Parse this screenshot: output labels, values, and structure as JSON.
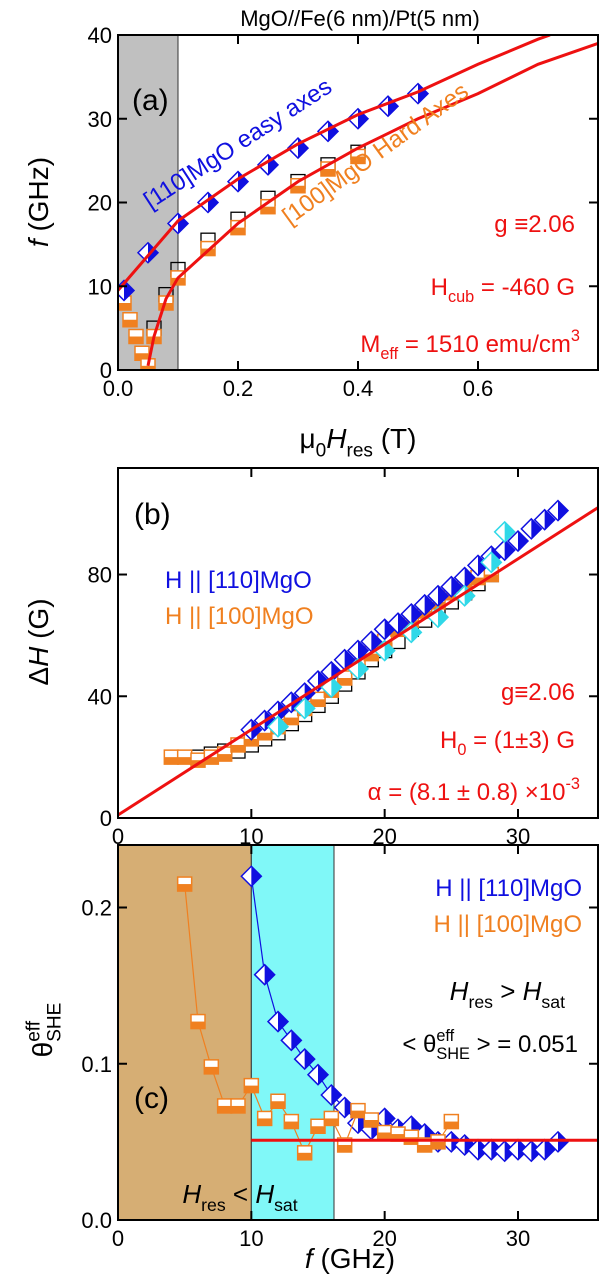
{
  "chart_data": [
    {
      "type": "scatter",
      "title": "MgO//Fe(6 nm)/Pt(5 nm)",
      "x_label": [
        {
          "text": "μ"
        },
        {
          "text": "0",
          "sub": true
        },
        {
          "text": "H",
          "italic": true
        },
        {
          "text": "res",
          "sub": true
        },
        {
          "text": " (T)"
        }
      ],
      "y_label": [
        {
          "text": "f",
          "italic": true
        },
        {
          "text": " (GHz)"
        }
      ],
      "xlim": [
        0,
        0.8
      ],
      "ylim": [
        0,
        40
      ],
      "xticks": [
        {
          "value": 0,
          "label": "0.0"
        },
        0.2,
        0.4,
        0.6
      ],
      "yticks": [
        0,
        10,
        20,
        30,
        40
      ],
      "shaded": [
        {
          "x": [
            0,
            0.1
          ],
          "color": "#c0c0c0"
        }
      ],
      "series": [
        {
          "style": "square-open",
          "color": "#000000",
          "x": [
            0.06,
            0.08,
            0.1,
            0.15,
            0.2,
            0.25,
            0.3,
            0.35,
            0.4
          ],
          "values": [
            5,
            9,
            12,
            15.5,
            18,
            20.5,
            22.5,
            24.5,
            26
          ]
        },
        {
          "style": "square",
          "color": "#f08020",
          "x": [
            0.01,
            0.02,
            0.03,
            0.04,
            0.05,
            0.06,
            0.08,
            0.1,
            0.15,
            0.2,
            0.25,
            0.3,
            0.35,
            0.4
          ],
          "values": [
            8,
            6,
            4,
            2,
            0.5,
            4,
            8,
            11,
            14.5,
            17,
            19.5,
            22,
            24,
            25.5
          ]
        },
        {
          "style": "diamond",
          "color": "#1010e0",
          "x": [
            0.01,
            0.05,
            0.1,
            0.15,
            0.2,
            0.25,
            0.3,
            0.35,
            0.4,
            0.45,
            0.5
          ],
          "values": [
            9.5,
            14,
            17.5,
            20,
            22.5,
            24.5,
            26.5,
            28.5,
            30,
            31.5,
            33
          ]
        },
        {
          "style": "line",
          "color": "#ee1111",
          "x": [
            0,
            0.1,
            0.2,
            0.3,
            0.4,
            0.5,
            0.6,
            0.7,
            0.72
          ],
          "values": [
            9.5,
            17.8,
            22.8,
            27,
            30.5,
            33.2,
            36.5,
            39.5,
            40
          ]
        },
        {
          "style": "line",
          "color": "#ee1111",
          "x": [
            0.05,
            0.06,
            0.08,
            0.1,
            0.2,
            0.3,
            0.4,
            0.5,
            0.6,
            0.7,
            0.8
          ],
          "values": [
            0.5,
            4,
            8.5,
            11,
            17.5,
            22.5,
            26.5,
            30,
            33,
            36.5,
            39
          ]
        }
      ],
      "annotations": [
        {
          "color": "#000000",
          "parts": [
            {
              "text": "(a)"
            }
          ]
        },
        {
          "color": "#1010e0",
          "parts": [
            {
              "text": "[110]MgO  easy axes"
            }
          ]
        },
        {
          "color": "#f08020",
          "parts": [
            {
              "text": "[100]MgO Hard Axes"
            }
          ]
        },
        {
          "color": "#ee1111",
          "parts": [
            {
              "text": "g ≡2.06"
            }
          ]
        },
        {
          "color": "#ee1111",
          "parts": [
            {
              "text": "H"
            },
            {
              "text": "cub",
              "sub": true
            },
            {
              "text": " = -460 G"
            }
          ]
        },
        {
          "color": "#ee1111",
          "parts": [
            {
              "text": "M"
            },
            {
              "text": "eff",
              "sub": true
            },
            {
              "text": " = 1510 emu/cm"
            },
            {
              "text": "3",
              "sup": true
            }
          ]
        }
      ]
    },
    {
      "type": "scatter",
      "x_label": [],
      "y_label": [
        {
          "text": "Δ"
        },
        {
          "text": "H",
          "italic": true
        },
        {
          "text": " (G)"
        }
      ],
      "xlim": [
        0,
        36
      ],
      "ylim": [
        0,
        115
      ],
      "xticks": [
        0,
        10,
        20,
        30
      ],
      "yticks": [
        0,
        40,
        80
      ],
      "shaded": [],
      "series": [
        {
          "style": "square-open",
          "color": "#000000",
          "x": [
            6,
            7,
            8,
            9,
            10,
            11,
            12,
            13,
            14,
            15,
            16,
            17,
            18,
            19,
            20,
            21,
            22,
            23,
            24,
            25,
            26,
            27,
            28
          ],
          "values": [
            20,
            21,
            22,
            22,
            24,
            26,
            28,
            31,
            34,
            37,
            40,
            44,
            48,
            52,
            55,
            58,
            62,
            65,
            68,
            71,
            74,
            77,
            80
          ]
        },
        {
          "name": "H || [100]MgO",
          "style": "square",
          "color": "#f08020",
          "x": [
            4,
            5,
            6,
            7,
            8,
            9,
            10,
            11,
            12,
            13,
            14,
            15,
            16,
            17,
            18,
            19,
            20,
            21,
            22,
            23,
            24,
            25,
            26,
            27,
            28
          ],
          "values": [
            20,
            20,
            19,
            20,
            21,
            24,
            26,
            28,
            30,
            33,
            36,
            39,
            42,
            46,
            50,
            54,
            58,
            62,
            65,
            68,
            71,
            74,
            77,
            79,
            80
          ]
        },
        {
          "name": "H || [110]MgO",
          "style": "diamond",
          "color": "#1010e0",
          "x": [
            10,
            11,
            12,
            13,
            14,
            15,
            16,
            17,
            18,
            19,
            20,
            21,
            22,
            23,
            24,
            25,
            26,
            27,
            28,
            29,
            30,
            31,
            32,
            33
          ],
          "values": [
            29,
            32,
            35,
            38,
            41,
            45,
            48,
            52,
            55,
            58,
            62,
            64,
            67,
            70,
            73,
            76,
            79,
            83,
            86,
            88,
            91,
            95,
            98,
            101
          ]
        },
        {
          "style": "diamond",
          "color": "#30d8e8",
          "x": [
            12,
            14,
            16,
            18,
            20,
            22,
            24,
            26,
            28,
            29
          ],
          "values": [
            30,
            36,
            43,
            49,
            55,
            61,
            66,
            73,
            84,
            94
          ]
        },
        {
          "style": "line",
          "color": "#ee1111",
          "x": [
            0,
            36
          ],
          "values": [
            1,
            102
          ]
        }
      ],
      "legend": [
        2,
        1
      ],
      "annotations": [
        {
          "color": "#000000",
          "parts": [
            {
              "text": "(b)"
            }
          ]
        },
        {
          "color": "#ee1111",
          "parts": [
            {
              "text": "g≡2.06"
            }
          ]
        },
        {
          "color": "#ee1111",
          "parts": [
            {
              "text": "H"
            },
            {
              "text": "0",
              "sub": true
            },
            {
              "text": " = (1±3) G"
            }
          ]
        },
        {
          "color": "#ee1111",
          "parts": [
            {
              "text": "α = (8.1 ± 0.8) ×10"
            },
            {
              "text": "-3",
              "sup": true
            }
          ]
        }
      ]
    },
    {
      "type": "scatter",
      "x_label": [
        {
          "text": "f",
          "italic": true
        },
        {
          "text": " (GHz)"
        }
      ],
      "y_label": [
        {
          "text": "θ"
        },
        {
          "text": "eff",
          "sup": true
        },
        {
          "text": "SHE",
          "sub": true
        }
      ],
      "xlim": [
        0,
        36
      ],
      "ylim": [
        0,
        0.24
      ],
      "xticks": [
        0,
        10,
        20,
        30
      ],
      "yticks": [
        {
          "value": 0,
          "label": "0.0"
        },
        0.1,
        0.2
      ],
      "shaded": [
        {
          "x": [
            0,
            10
          ],
          "color": "#d6ae74"
        },
        {
          "x": [
            10,
            16.2
          ],
          "color": "#80f8f8"
        }
      ],
      "series": [
        {
          "name": "H || [110]MgO",
          "style": "diamond",
          "connect": true,
          "color": "#1010e0",
          "x": [
            10,
            11,
            12,
            13,
            14,
            15,
            16,
            17,
            18,
            19,
            20,
            21,
            22,
            23,
            24,
            25,
            26,
            27,
            28,
            29,
            30,
            31,
            32,
            33
          ],
          "values": [
            0.22,
            0.157,
            0.127,
            0.115,
            0.103,
            0.093,
            0.08,
            0.072,
            0.062,
            0.058,
            0.065,
            0.058,
            0.06,
            0.055,
            0.05,
            0.05,
            0.048,
            0.045,
            0.045,
            0.044,
            0.045,
            0.044,
            0.045,
            0.05
          ]
        },
        {
          "name": "H || [100]MgO",
          "style": "square",
          "connect": true,
          "color": "#f08020",
          "x": [
            5,
            6,
            7,
            8,
            9,
            10,
            11,
            12,
            13,
            14,
            15,
            16,
            17,
            18,
            19,
            20,
            21,
            22,
            23,
            24,
            25
          ],
          "values": [
            0.215,
            0.127,
            0.098,
            0.073,
            0.073,
            0.086,
            0.065,
            0.076,
            0.063,
            0.043,
            0.06,
            0.065,
            0.048,
            0.07,
            0.064,
            0.056,
            0.055,
            0.053,
            0.048,
            0.05,
            0.063
          ]
        },
        {
          "style": "line",
          "color": "#ee1111",
          "x": [
            10,
            36
          ],
          "values": [
            0.051,
            0.051
          ]
        }
      ],
      "legend": [
        0,
        1
      ],
      "annotations": [
        {
          "color": "#000000",
          "parts": [
            {
              "text": "(c)"
            }
          ]
        },
        {
          "color": "#000000",
          "parts": [
            {
              "text": "H",
              "italic": true
            },
            {
              "text": "res",
              "sub": true
            },
            {
              "text": " > "
            },
            {
              "text": "H",
              "italic": true
            },
            {
              "text": "sat",
              "sub": true
            }
          ]
        },
        {
          "color": "#000000",
          "parts": [
            {
              "text": "< θ"
            },
            {
              "text": "eff",
              "sup": true
            },
            {
              "text": "SHE",
              "sub": true
            },
            {
              "text": " > = 0.051"
            }
          ]
        },
        {
          "color": "#000000",
          "parts": [
            {
              "text": "H",
              "italic": true
            },
            {
              "text": "res",
              "sub": true
            },
            {
              "text": " < "
            },
            {
              "text": "H",
              "italic": true
            },
            {
              "text": "sat",
              "sub": true
            }
          ]
        }
      ]
    }
  ]
}
